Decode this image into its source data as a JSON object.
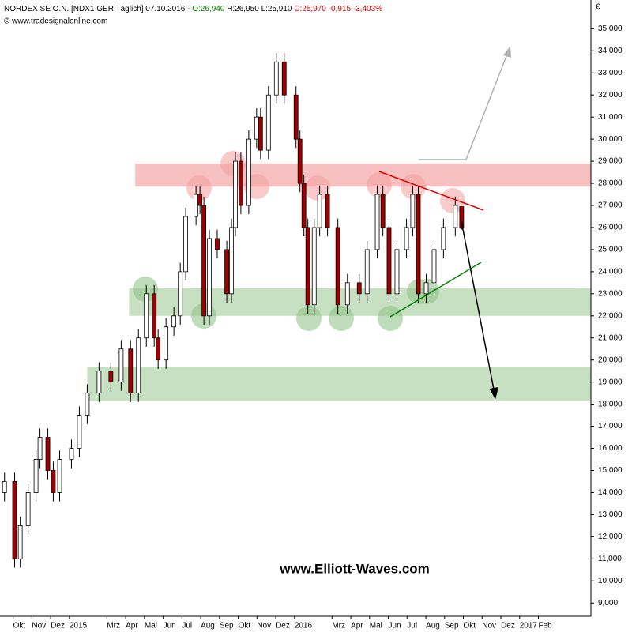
{
  "chart_data": {
    "type": "candlestick",
    "header": {
      "instrument": "NORDEX SE O.N.  [NDX1 GER  Täglich]  07.10.2016  -",
      "open_label": "O:26,940",
      "high_label": "H:26,950",
      "low_label": "L:25,910",
      "change_label": "C:25,970 -0,915 -3,403%"
    },
    "copyright": "© www.tradesignalonline.com",
    "watermark": "www.Elliott-Waves.com",
    "currency": "€",
    "up_color": "#ffffff",
    "down_color": "#a00000",
    "xlim": [
      -0.7,
      30.8
    ],
    "xticks": [
      {
        "value": 0,
        "label": "Okt"
      },
      {
        "value": 1,
        "label": "Nov"
      },
      {
        "value": 2,
        "label": "Dez"
      },
      {
        "value": 3,
        "label": "2015"
      },
      {
        "value": 5,
        "label": "Mrz"
      },
      {
        "value": 6,
        "label": "Apr"
      },
      {
        "value": 7,
        "label": "Mai"
      },
      {
        "value": 8,
        "label": "Jun"
      },
      {
        "value": 9,
        "label": "Jul"
      },
      {
        "value": 10,
        "label": "Aug"
      },
      {
        "value": 11,
        "label": "Sep"
      },
      {
        "value": 12,
        "label": "Okt"
      },
      {
        "value": 13,
        "label": "Nov"
      },
      {
        "value": 14,
        "label": "Dez"
      },
      {
        "value": 15,
        "label": "2016"
      },
      {
        "value": 17,
        "label": "Mrz"
      },
      {
        "value": 18,
        "label": "Apr"
      },
      {
        "value": 19,
        "label": "Mai"
      },
      {
        "value": 20,
        "label": "Jun"
      },
      {
        "value": 21,
        "label": "Jul"
      },
      {
        "value": 22,
        "label": "Aug"
      },
      {
        "value": 23,
        "label": "Sep"
      },
      {
        "value": 24,
        "label": "Okt"
      },
      {
        "value": 25,
        "label": "Nov"
      },
      {
        "value": 26,
        "label": "Dez"
      },
      {
        "value": 27,
        "label": "2017"
      },
      {
        "value": 28,
        "label": "Feb"
      }
    ],
    "ylim": [
      8400,
      36300
    ],
    "yticks": [
      {
        "value": 9000,
        "label": "9,000"
      },
      {
        "value": 10000,
        "label": "10,000"
      },
      {
        "value": 11000,
        "label": "11,000"
      },
      {
        "value": 12000,
        "label": "12,000"
      },
      {
        "value": 13000,
        "label": "13,000"
      },
      {
        "value": 14000,
        "label": "14,000"
      },
      {
        "value": 15000,
        "label": "15,000"
      },
      {
        "value": 16000,
        "label": "16,000"
      },
      {
        "value": 17000,
        "label": "17,000"
      },
      {
        "value": 18000,
        "label": "18,000"
      },
      {
        "value": 19000,
        "label": "19,000"
      },
      {
        "value": 20000,
        "label": "20,000"
      },
      {
        "value": 21000,
        "label": "21,000"
      },
      {
        "value": 22000,
        "label": "22,000"
      },
      {
        "value": 23000,
        "label": "23,000"
      },
      {
        "value": 24000,
        "label": "24,000"
      },
      {
        "value": 25000,
        "label": "25,000"
      },
      {
        "value": 26000,
        "label": "26,000"
      },
      {
        "value": 27000,
        "label": "27,000"
      },
      {
        "value": 28000,
        "label": "28,000"
      },
      {
        "value": 29000,
        "label": "29,000"
      },
      {
        "value": 30000,
        "label": "30,000"
      },
      {
        "value": 31000,
        "label": "31,000"
      },
      {
        "value": 32000,
        "label": "32,000"
      },
      {
        "value": 33000,
        "label": "33,000"
      },
      {
        "value": 34000,
        "label": "34,000"
      },
      {
        "value": 35000,
        "label": "35,000"
      }
    ],
    "zones": [
      {
        "from_x": 6.51,
        "low": 27850,
        "high": 28900,
        "color": "#f4a0a0"
      },
      {
        "from_x": 6.18,
        "low": 22000,
        "high": 23250,
        "color": "#a8d0a0"
      },
      {
        "from_x": 3.95,
        "low": 18150,
        "high": 19700,
        "color": "#a8d0a0"
      }
    ],
    "x": [
      -0.46,
      0.08,
      0.38,
      0.8,
      1.22,
      1.43,
      1.85,
      2.14,
      2.48,
      3.11,
      3.53,
      3.95,
      4.58,
      5.21,
      5.76,
      6.26,
      6.68,
      7.1,
      7.52,
      7.73,
      8.15,
      8.57,
      8.91,
      9.2,
      9.75,
      9.96,
      10.17,
      10.46,
      10.88,
      11.39,
      11.64,
      11.85,
      12.14,
      12.56,
      12.98,
      13.19,
      13.61,
      14.03,
      14.45,
      15.08,
      15.29,
      15.5,
      15.71,
      16.05,
      16.34,
      16.76,
      17.31,
      17.82,
      18.45,
      18.87,
      19.41,
      19.71,
      20.04,
      20.46,
      20.97,
      21.3,
      21.6,
      22.02,
      22.44,
      22.94,
      23.57,
      23.91
    ],
    "open": [
      14000,
      14500,
      11000,
      12500,
      14000,
      15500,
      16500,
      15000,
      14000,
      15500,
      16000,
      17500,
      18500,
      19500,
      19000,
      20500,
      18500,
      21000,
      23000,
      21000,
      20000,
      21500,
      22000,
      24000,
      26500,
      27500,
      27000,
      22000,
      25500,
      25000,
      23000,
      26000,
      29000,
      27000,
      30000,
      31000,
      29500,
      32000,
      33500,
      32000,
      30000,
      28000,
      26000,
      22500,
      26000,
      27500,
      26000,
      22500,
      23500,
      23000,
      25000,
      27500,
      26000,
      23000,
      25000,
      26000,
      27500,
      23000,
      23500,
      25000,
      26000,
      26940
    ],
    "high": [
      14900,
      14900,
      12900,
      14400,
      15900,
      16900,
      16900,
      15400,
      15900,
      16400,
      17900,
      18900,
      19900,
      19900,
      20900,
      20900,
      21400,
      23400,
      23400,
      21400,
      21900,
      22400,
      24400,
      26900,
      27900,
      27900,
      27400,
      25900,
      25900,
      25400,
      26400,
      29400,
      29400,
      30400,
      31400,
      31400,
      32400,
      33900,
      33900,
      32400,
      30400,
      28400,
      26400,
      26400,
      27900,
      27900,
      26400,
      23900,
      23900,
      25400,
      27900,
      27900,
      26400,
      25400,
      26400,
      27900,
      27900,
      23900,
      25400,
      26400,
      27400,
      26950
    ],
    "low": [
      13600,
      10600,
      10600,
      12100,
      13600,
      15100,
      14600,
      13600,
      13600,
      15100,
      15600,
      17100,
      18100,
      18600,
      18600,
      18100,
      18100,
      20600,
      20600,
      19600,
      19600,
      21100,
      21600,
      23600,
      26100,
      26600,
      21600,
      21600,
      24600,
      22600,
      22600,
      25600,
      26600,
      26600,
      29600,
      29100,
      29100,
      31600,
      31600,
      29600,
      27600,
      25600,
      22100,
      22100,
      25600,
      25600,
      22100,
      22100,
      22600,
      22600,
      24600,
      25600,
      22600,
      22600,
      24600,
      25600,
      22600,
      22600,
      23100,
      24600,
      25600,
      25910
    ],
    "close": [
      14500,
      11000,
      12500,
      14000,
      15500,
      16500,
      15000,
      14000,
      15500,
      16000,
      17500,
      18500,
      19500,
      19000,
      20500,
      18500,
      21000,
      23000,
      21000,
      20000,
      21500,
      22000,
      24000,
      26500,
      27500,
      27000,
      22000,
      25500,
      25000,
      23000,
      26000,
      29000,
      27000,
      30000,
      31000,
      29500,
      32000,
      33500,
      32000,
      30000,
      28000,
      26000,
      22500,
      26000,
      27500,
      26000,
      22500,
      23500,
      23000,
      25000,
      27500,
      26000,
      23000,
      25000,
      26000,
      27500,
      23000,
      23500,
      25000,
      26000,
      27000,
      25970
    ]
  }
}
